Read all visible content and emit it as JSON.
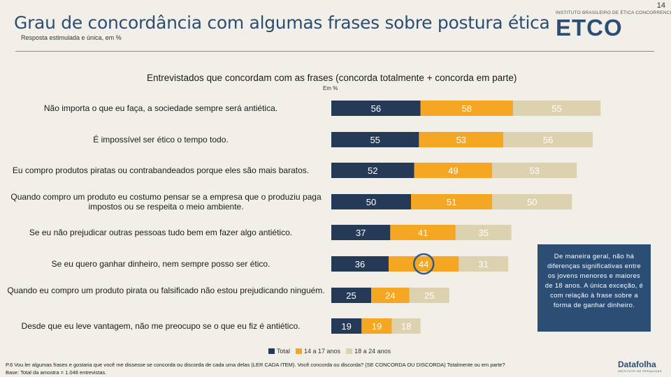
{
  "page_number": "14",
  "title": "Grau de concordância com algumas frases sobre postura ética",
  "subtitle": "Resposta estimulada e única, em %",
  "logo": {
    "caption": "INSTITUTO BRASILEIRO DE ÉTICA CONCORRENCIAL",
    "word": "ETCO"
  },
  "chart_data": {
    "type": "bar",
    "orientation": "horizontal-stacked",
    "title": "Entrevistados que concordam com as frases (concorda totalmente + concorda em parte)",
    "unit": "Em %",
    "categories": [
      "Não importa o que eu faça, a sociedade sempre será antiética.",
      "É impossível ser ético o tempo todo.",
      "Eu compro produtos piratas ou contrabandeados porque eles são mais baratos.",
      "Quando compro um produto eu costumo pensar se a empresa que o produziu paga impostos ou se respeita o meio ambiente.",
      "Se eu não prejudicar outras pessoas tudo bem em fazer algo antiético.",
      "Se eu quero ganhar dinheiro, nem sempre posso ser ético.",
      "Quando eu compro um produto pirata ou falsificado não estou prejudicando ninguém.",
      "Desde que eu leve vantagem, não me preocupo se o que eu fiz é antiético."
    ],
    "series": [
      {
        "name": "Total",
        "color": "#243a57",
        "values": [
          56,
          55,
          52,
          50,
          37,
          36,
          25,
          19
        ]
      },
      {
        "name": "14 a 17 anos",
        "color": "#f5a623",
        "values": [
          58,
          53,
          49,
          51,
          41,
          44,
          24,
          19
        ]
      },
      {
        "name": "18 a 24 anos",
        "color": "#ddd2b0",
        "values": [
          55,
          56,
          53,
          50,
          35,
          31,
          25,
          18
        ]
      }
    ],
    "highlighted": {
      "series": "14 a 17 anos",
      "category_index": 5
    }
  },
  "callout": "De maneira geral, não há diferenças significativas entre os jovens menores e maiores de 18 anos. A única exceção, é com relação à frase sobre a forma de ganhar dinheiro.",
  "footnote": {
    "question": "P.6 Vou ler algumas frases e gostaria que você me dissesse se concorda ou discorda de cada uma delas (LER CADA ITEM). Você concorda ou discorda? (SE CONCORDA OU DISCORDA) Totalmente ou em parte?",
    "base": "Base: Total da amostra = 1.048 entrevistas."
  },
  "datafolha": {
    "name": "Datafolha",
    "sub": "INSTITUTO DE PESQUISAS"
  }
}
